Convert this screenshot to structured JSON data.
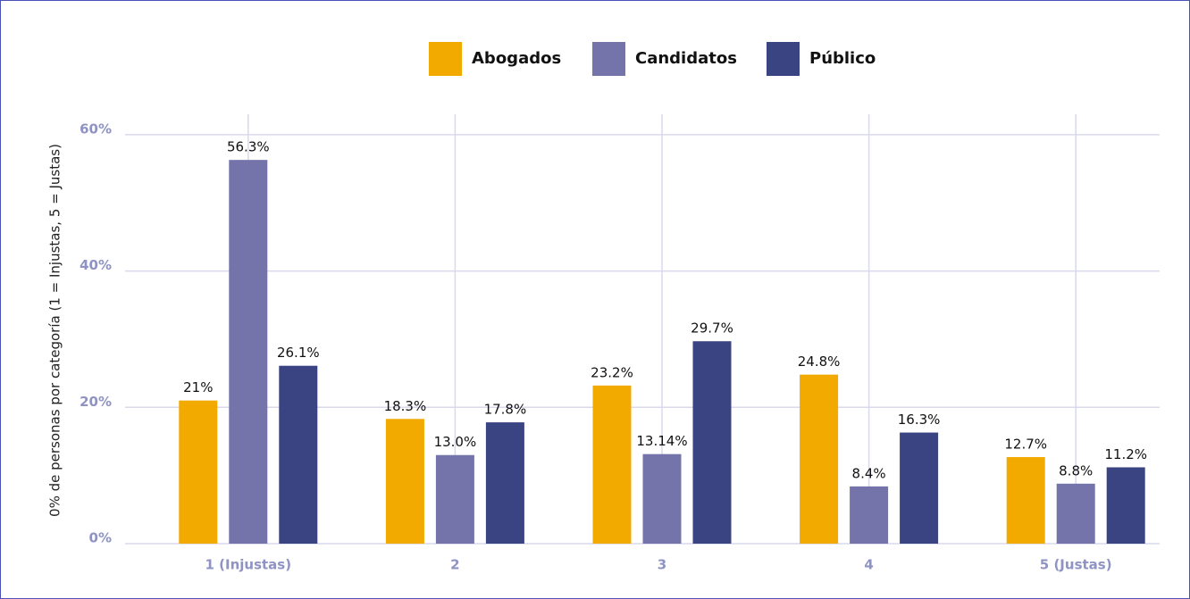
{
  "chart_data": {
    "type": "bar",
    "y_label": "0% de personas por categoría (1 = Injustas, 5 = Justas)",
    "categories": [
      "1 (Injustas)",
      "2",
      "3",
      "4",
      "5 (Justas)"
    ],
    "series": [
      {
        "name": "Abogados",
        "color": "#f2a900",
        "values": [
          21,
          18.3,
          23.2,
          24.8,
          12.7
        ],
        "value_labels": [
          "21%",
          "18.3%",
          "23.2%",
          "24.8%",
          "12.7%"
        ]
      },
      {
        "name": "Candidatos",
        "color": "#7474aa",
        "values": [
          56.3,
          13.0,
          13.14,
          8.4,
          8.8
        ],
        "value_labels": [
          "56.3%",
          "13.0%",
          "13.14%",
          "8.4%",
          "8.8%"
        ]
      },
      {
        "name": "Público",
        "color": "#3b4483",
        "values": [
          26.1,
          17.8,
          29.7,
          16.3,
          11.2
        ],
        "value_labels": [
          "26.1%",
          "17.8%",
          "29.7%",
          "16.3%",
          "11.2%"
        ]
      }
    ],
    "ylim": [
      0,
      63
    ],
    "yticks": [
      {
        "value": 0,
        "label": "0%"
      },
      {
        "value": 20,
        "label": "20%"
      },
      {
        "value": 40,
        "label": "40%"
      },
      {
        "value": 60,
        "label": "60%"
      }
    ],
    "grid": true,
    "legend": "top"
  }
}
